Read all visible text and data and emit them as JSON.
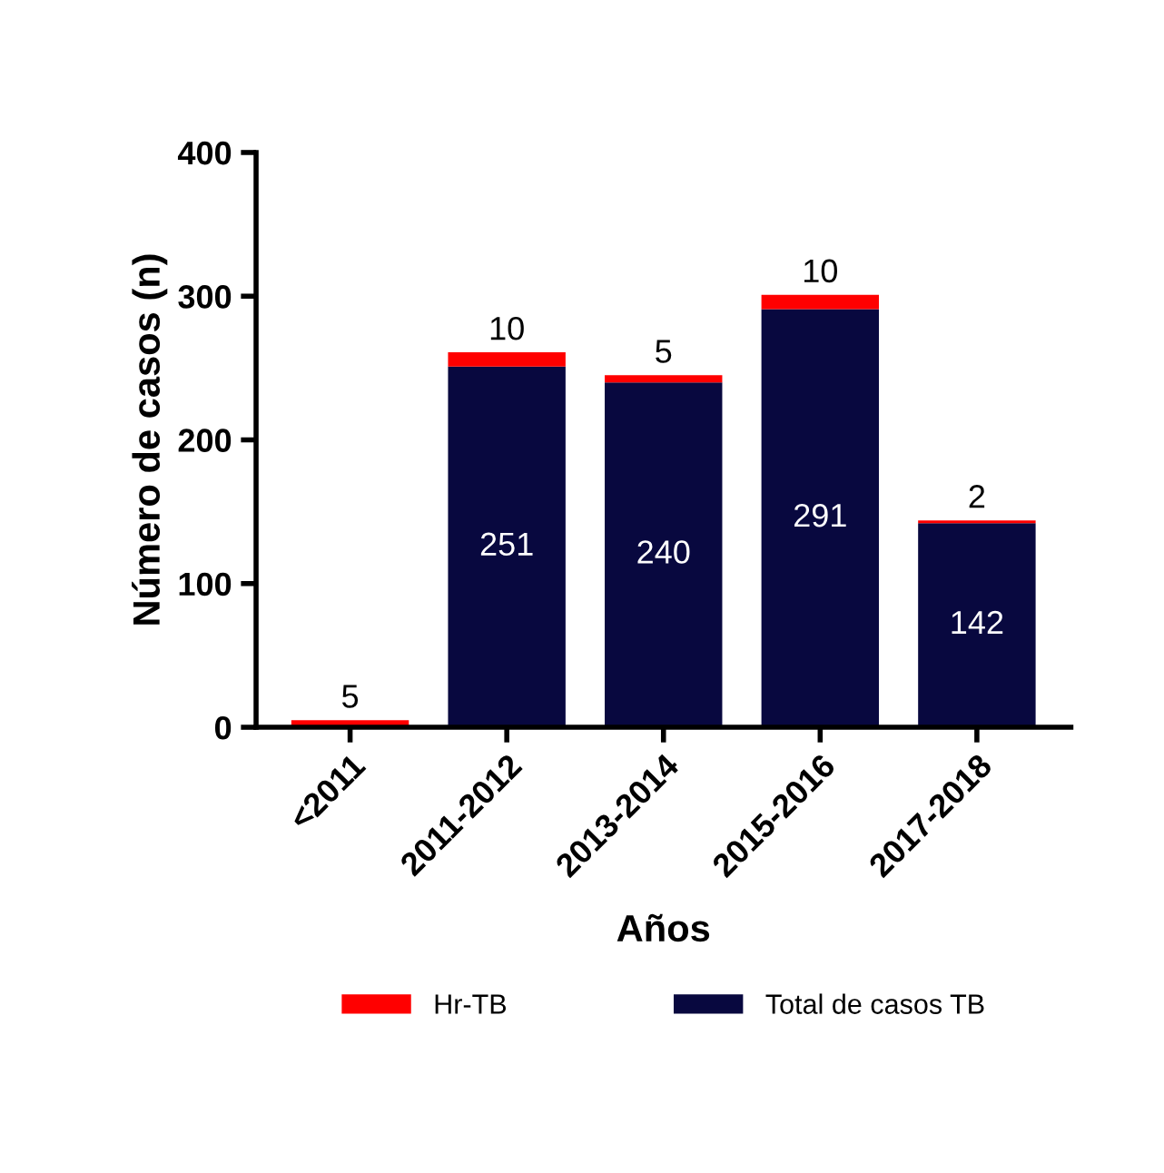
{
  "chart_data": {
    "type": "bar",
    "stacked": true,
    "xlabel": "Años",
    "ylabel": "Número de casos (n)",
    "categories": [
      "<2011",
      "2011-2012",
      "2013-2014",
      "2015-2016",
      "2017-2018"
    ],
    "series": [
      {
        "name": "Total de casos TB",
        "color": "#08083f",
        "values": [
          0,
          251,
          240,
          291,
          142
        ],
        "value_labels": [
          null,
          "251",
          "240",
          "291",
          "142"
        ]
      },
      {
        "name": "Hr-TB",
        "color": "#ff0000",
        "values": [
          5,
          10,
          5,
          10,
          2
        ],
        "value_labels": [
          "5",
          "10",
          "5",
          "10",
          "2"
        ]
      }
    ],
    "ylim": [
      0,
      400
    ],
    "yticks": [
      0,
      100,
      200,
      300,
      400
    ],
    "grid": false,
    "legend": "bottom"
  }
}
